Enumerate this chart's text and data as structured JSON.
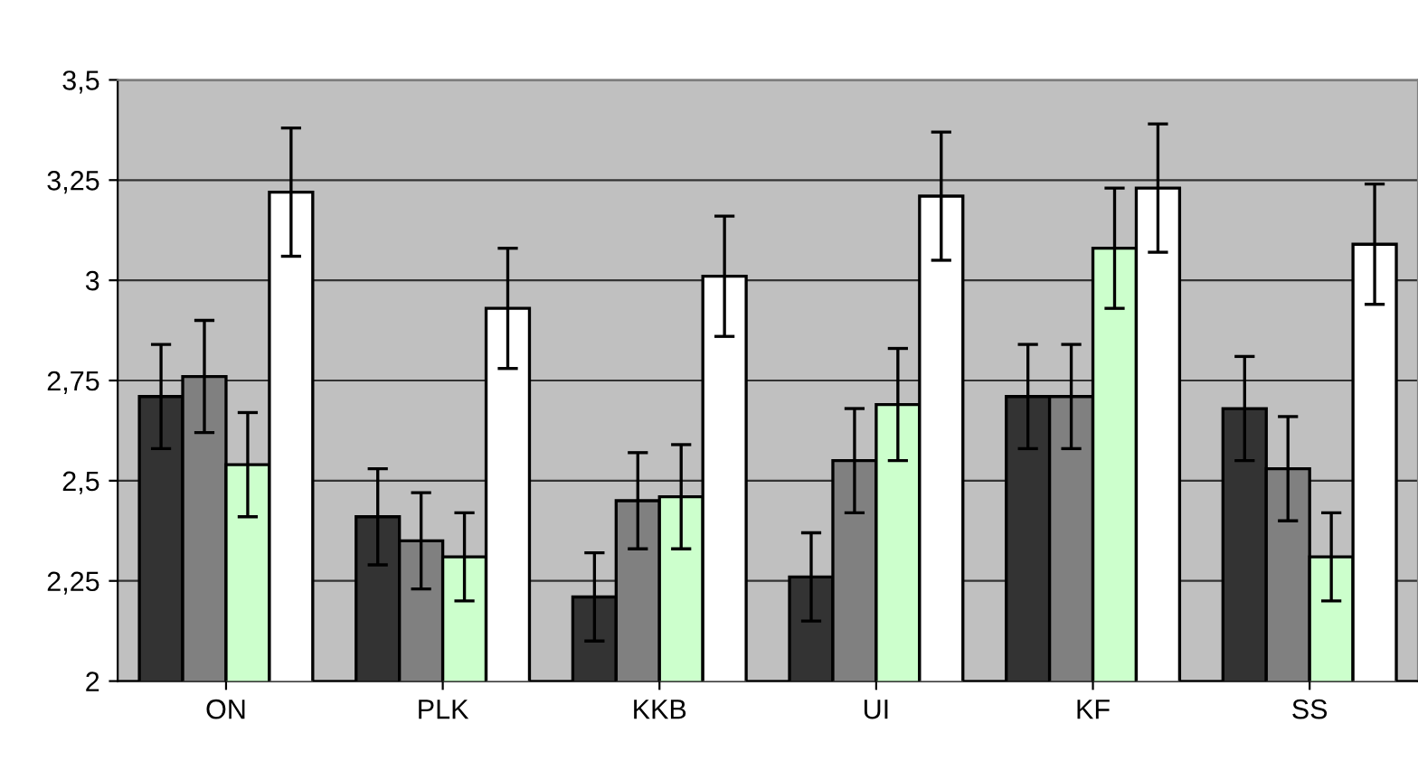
{
  "chart_data": {
    "type": "bar",
    "categories": [
      "ON",
      "PLK",
      "KKB",
      "UI",
      "KF",
      "SS"
    ],
    "series": [
      {
        "color": "#333333",
        "values": [
          2.71,
          2.41,
          2.21,
          2.26,
          2.71,
          2.68
        ],
        "errors": [
          0.13,
          0.12,
          0.11,
          0.11,
          0.13,
          0.13
        ]
      },
      {
        "color": "#808080",
        "values": [
          2.76,
          2.35,
          2.45,
          2.55,
          2.71,
          2.53
        ],
        "errors": [
          0.14,
          0.12,
          0.12,
          0.13,
          0.13,
          0.13
        ]
      },
      {
        "color": "#ccffcc",
        "values": [
          2.54,
          2.31,
          2.46,
          2.69,
          3.08,
          2.31
        ],
        "errors": [
          0.13,
          0.11,
          0.13,
          0.14,
          0.15,
          0.11
        ]
      },
      {
        "color": "#ffffff",
        "values": [
          3.22,
          2.93,
          3.01,
          3.21,
          3.23,
          3.09
        ],
        "errors": [
          0.16,
          0.15,
          0.15,
          0.16,
          0.16,
          0.15
        ]
      }
    ],
    "ylim": [
      2,
      3.5
    ],
    "yticks": [
      {
        "value": 2,
        "label": "2"
      },
      {
        "value": 2.25,
        "label": "2,25"
      },
      {
        "value": 2.5,
        "label": "2,5"
      },
      {
        "value": 2.75,
        "label": "2,75"
      },
      {
        "value": 3,
        "label": "3"
      },
      {
        "value": 3.25,
        "label": "3,25"
      },
      {
        "value": 3.5,
        "label": "3,5"
      }
    ],
    "grid": "y",
    "legend": false
  }
}
